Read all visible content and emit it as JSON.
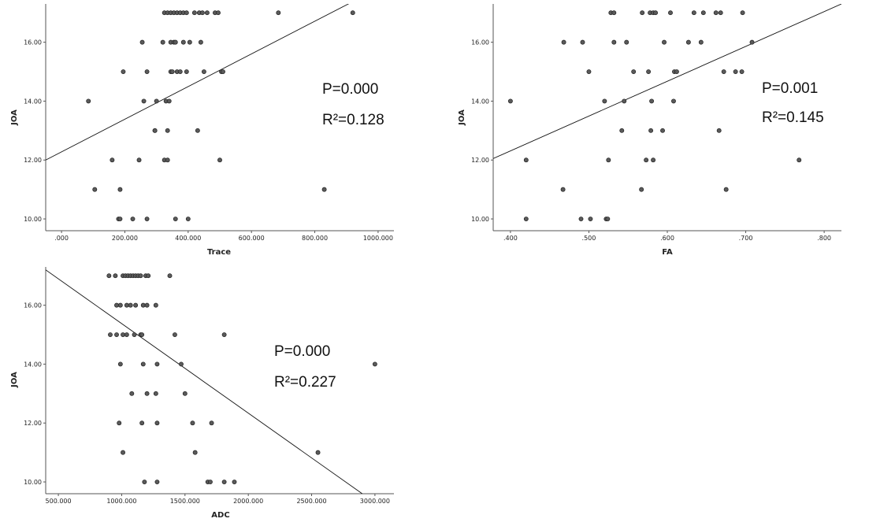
{
  "chart_data": [
    {
      "type": "scatter",
      "xlabel": "Trace",
      "ylabel": "JOA",
      "xlim": [
        -50,
        1050
      ],
      "ylim": [
        9.6,
        17.3
      ],
      "x_ticks": [
        ".000",
        "200.000",
        "400.000",
        "600.000",
        "800.000",
        "1000.000"
      ],
      "x_tick_values": [
        0,
        200,
        400,
        600,
        800,
        1000
      ],
      "y_ticks": [
        "10.00",
        "12.00",
        "14.00",
        "16.00"
      ],
      "y_tick_values": [
        10,
        12,
        14,
        16
      ],
      "annotation": {
        "p_text": "P=0.000",
        "r2_text": "R²=0.128"
      },
      "fit_line": {
        "x": [
          -50,
          915
        ],
        "y": [
          12.0,
          17.35
        ]
      },
      "points": [
        [
          85,
          14
        ],
        [
          105,
          11
        ],
        [
          160,
          12
        ],
        [
          180,
          10
        ],
        [
          185,
          11
        ],
        [
          185,
          10
        ],
        [
          195,
          15
        ],
        [
          225,
          10
        ],
        [
          245,
          12
        ],
        [
          255,
          16
        ],
        [
          260,
          14
        ],
        [
          270,
          15
        ],
        [
          270,
          10
        ],
        [
          295,
          13
        ],
        [
          295,
          13
        ],
        [
          300,
          14
        ],
        [
          320,
          16
        ],
        [
          325,
          12
        ],
        [
          330,
          14
        ],
        [
          335,
          13
        ],
        [
          335,
          12
        ],
        [
          340,
          14
        ],
        [
          345,
          16
        ],
        [
          345,
          15
        ],
        [
          350,
          15
        ],
        [
          355,
          16
        ],
        [
          360,
          10
        ],
        [
          360,
          16
        ],
        [
          365,
          15
        ],
        [
          375,
          15
        ],
        [
          385,
          16
        ],
        [
          395,
          15
        ],
        [
          400,
          10
        ],
        [
          405,
          16
        ],
        [
          430,
          13
        ],
        [
          440,
          16
        ],
        [
          450,
          15
        ],
        [
          500,
          12
        ],
        [
          505,
          15
        ],
        [
          510,
          15
        ],
        [
          830,
          11
        ],
        [
          325,
          17
        ],
        [
          335,
          17
        ],
        [
          345,
          17
        ],
        [
          355,
          17
        ],
        [
          365,
          17
        ],
        [
          375,
          17
        ],
        [
          385,
          17
        ],
        [
          395,
          17
        ],
        [
          420,
          17
        ],
        [
          435,
          17
        ],
        [
          445,
          17
        ],
        [
          460,
          17
        ],
        [
          485,
          17
        ],
        [
          495,
          17
        ],
        [
          685,
          17
        ],
        [
          920,
          17
        ]
      ]
    },
    {
      "type": "scatter",
      "xlabel": "FA",
      "ylabel": "JOA",
      "xlim": [
        0.378,
        0.822
      ],
      "ylim": [
        9.6,
        17.3
      ],
      "x_ticks": [
        ".400",
        ".500",
        ".600",
        ".700",
        ".800"
      ],
      "x_tick_values": [
        0.4,
        0.5,
        0.6,
        0.7,
        0.8
      ],
      "y_ticks": [
        "10.00",
        "12.00",
        "14.00",
        "16.00"
      ],
      "y_tick_values": [
        10,
        12,
        14,
        16
      ],
      "annotation": {
        "p_text": "P=0.001",
        "r2_text": "R²=0.145"
      },
      "fit_line": {
        "x": [
          0.378,
          0.822
        ],
        "y": [
          12.05,
          17.3
        ]
      },
      "points": [
        [
          0.4,
          14
        ],
        [
          0.42,
          12
        ],
        [
          0.42,
          10
        ],
        [
          0.468,
          16
        ],
        [
          0.467,
          11
        ],
        [
          0.49,
          10
        ],
        [
          0.492,
          16
        ],
        [
          0.5,
          15
        ],
        [
          0.502,
          10
        ],
        [
          0.52,
          14
        ],
        [
          0.522,
          10
        ],
        [
          0.524,
          10
        ],
        [
          0.525,
          12
        ],
        [
          0.528,
          17
        ],
        [
          0.532,
          17
        ],
        [
          0.532,
          16
        ],
        [
          0.542,
          13
        ],
        [
          0.545,
          14
        ],
        [
          0.548,
          16
        ],
        [
          0.557,
          15
        ],
        [
          0.567,
          11
        ],
        [
          0.568,
          17
        ],
        [
          0.573,
          12
        ],
        [
          0.576,
          15
        ],
        [
          0.578,
          17
        ],
        [
          0.579,
          13
        ],
        [
          0.58,
          14
        ],
        [
          0.582,
          12
        ],
        [
          0.582,
          17
        ],
        [
          0.585,
          17
        ],
        [
          0.594,
          13
        ],
        [
          0.596,
          16
        ],
        [
          0.604,
          17
        ],
        [
          0.608,
          14
        ],
        [
          0.609,
          15
        ],
        [
          0.612,
          15
        ],
        [
          0.627,
          16
        ],
        [
          0.634,
          17
        ],
        [
          0.643,
          16
        ],
        [
          0.646,
          17
        ],
        [
          0.662,
          17
        ],
        [
          0.666,
          13
        ],
        [
          0.668,
          17
        ],
        [
          0.672,
          15
        ],
        [
          0.675,
          11
        ],
        [
          0.687,
          15
        ],
        [
          0.695,
          15
        ],
        [
          0.696,
          17
        ],
        [
          0.708,
          16
        ],
        [
          0.768,
          12
        ]
      ]
    },
    {
      "type": "scatter",
      "xlabel": "ADC",
      "ylabel": "JOA",
      "xlim": [
        400,
        3150
      ],
      "ylim": [
        9.6,
        17.3
      ],
      "x_ticks": [
        "500.000",
        "1000.000",
        "1500.000",
        "2000.000",
        "2500.000",
        "3000.000"
      ],
      "x_tick_values": [
        500,
        1000,
        1500,
        2000,
        2500,
        3000
      ],
      "y_ticks": [
        "10.00",
        "12.00",
        "14.00",
        "16.00"
      ],
      "y_tick_values": [
        10,
        12,
        14,
        16
      ],
      "annotation": {
        "p_text": "P=0.000",
        "r2_text": "R²=0.227"
      },
      "fit_line": {
        "x": [
          400,
          2900
        ],
        "y": [
          17.2,
          9.6
        ]
      },
      "points": [
        [
          900,
          17
        ],
        [
          950,
          17
        ],
        [
          1010,
          17
        ],
        [
          1030,
          17
        ],
        [
          1050,
          17
        ],
        [
          1070,
          17
        ],
        [
          1090,
          17
        ],
        [
          1110,
          17
        ],
        [
          1130,
          17
        ],
        [
          1150,
          17
        ],
        [
          1190,
          17
        ],
        [
          1210,
          17
        ],
        [
          1380,
          17
        ],
        [
          960,
          16
        ],
        [
          990,
          16
        ],
        [
          1040,
          16
        ],
        [
          1070,
          16
        ],
        [
          1110,
          16
        ],
        [
          1170,
          16
        ],
        [
          1200,
          16
        ],
        [
          1270,
          16
        ],
        [
          910,
          15
        ],
        [
          960,
          15
        ],
        [
          1010,
          15
        ],
        [
          1040,
          15
        ],
        [
          1100,
          15
        ],
        [
          1150,
          15
        ],
        [
          1160,
          15
        ],
        [
          1420,
          15
        ],
        [
          1810,
          15
        ],
        [
          990,
          14
        ],
        [
          1170,
          14
        ],
        [
          1280,
          14
        ],
        [
          1470,
          14
        ],
        [
          3000,
          14
        ],
        [
          1080,
          13
        ],
        [
          1200,
          13
        ],
        [
          1270,
          13
        ],
        [
          1500,
          13
        ],
        [
          980,
          12
        ],
        [
          1160,
          12
        ],
        [
          1280,
          12
        ],
        [
          1560,
          12
        ],
        [
          1710,
          12
        ],
        [
          1010,
          11
        ],
        [
          1580,
          11
        ],
        [
          2550,
          11
        ],
        [
          1180,
          10
        ],
        [
          1280,
          10
        ],
        [
          1680,
          10
        ],
        [
          1700,
          10
        ],
        [
          1810,
          10
        ],
        [
          1890,
          10
        ]
      ]
    }
  ]
}
